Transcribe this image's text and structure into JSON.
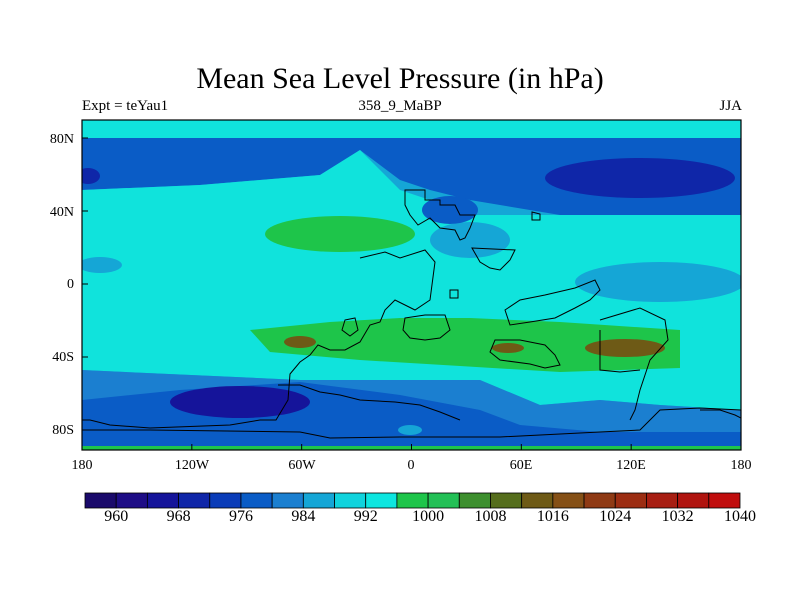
{
  "title": "Mean Sea Level Pressure (in hPa)",
  "subtitle": {
    "left": "Expt = teYau1",
    "center": "358_9_MaBP",
    "right": "JJA"
  },
  "lat_labels": [
    "80N",
    "40N",
    "0",
    "40S",
    "80S"
  ],
  "lon_labels": [
    "180",
    "120W",
    "60W",
    "0",
    "60E",
    "120E",
    "180"
  ],
  "colorbar": {
    "labels": [
      "960",
      "968",
      "976",
      "984",
      "992",
      "1000",
      "1008",
      "1016",
      "1024",
      "1032",
      "1040"
    ],
    "colors": [
      "#1a0a6b",
      "#1e0d86",
      "#15149a",
      "#0f26a8",
      "#0a3cb8",
      "#0a5cc6",
      "#1b7fd0",
      "#15a6d6",
      "#10d3dd",
      "#0de6e0",
      "#1ec54a",
      "#23c056",
      "#3d8f2e",
      "#556d1c",
      "#6e5a16",
      "#855016",
      "#8f3a14",
      "#9c2d12",
      "#a71e12",
      "#b0140f",
      "#c00d0d"
    ],
    "level_range": [
      956,
      1044
    ]
  },
  "map_colors": {
    "ocean_low": "#0a5cc6",
    "mid_low": "#1b7fd0",
    "sub": "#15a6d6",
    "cyan": "#10e3dc",
    "green": "#1ec54a",
    "olive": "#6e5a16",
    "deep": "#0f26a8",
    "deepest": "#15149a"
  }
}
